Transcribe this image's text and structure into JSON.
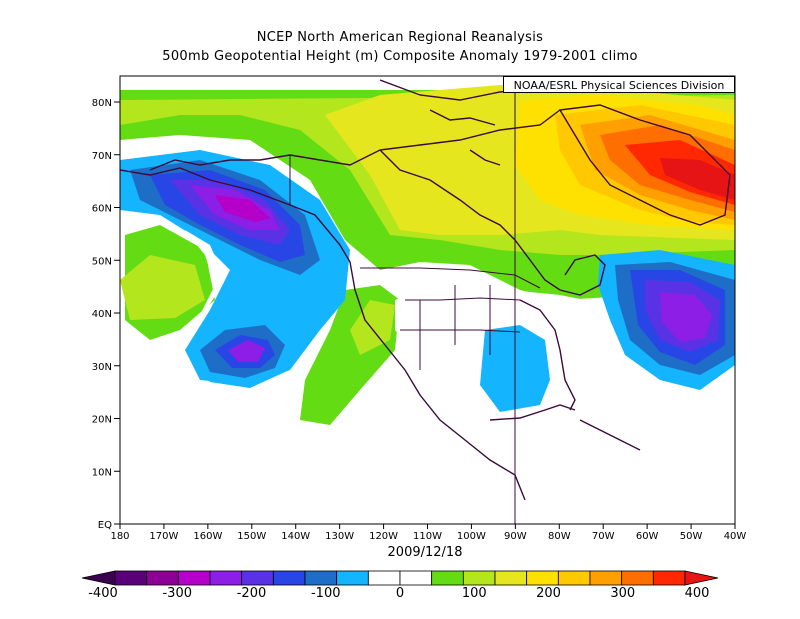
{
  "title_line1": "NCEP North American Regional Reanalysis",
  "title_line2": "500mb Geopotential Height (m) Composite Anomaly 1979-2001 climo",
  "credit": "NOAA/ESRL Physical Sciences Division",
  "date": "2009/12/18",
  "lat_labels": [
    "80N",
    "70N",
    "60N",
    "50N",
    "40N",
    "30N",
    "20N",
    "10N",
    "EQ"
  ],
  "lon_labels": [
    "180",
    "170W",
    "160W",
    "150W",
    "140W",
    "130W",
    "120W",
    "110W",
    "100W",
    "90W",
    "80W",
    "70W",
    "60W",
    "50W",
    "40W"
  ],
  "colorbar": {
    "labels": [
      "-400",
      "-300",
      "-200",
      "-100",
      "0",
      "100",
      "200",
      "300",
      "400"
    ],
    "colors": [
      "#5a0078",
      "#8c0096",
      "#b400c8",
      "#8c1ee6",
      "#5a32e6",
      "#2846e6",
      "#1e6ec8",
      "#14b4ff",
      "#ffffff",
      "#ffffff",
      "#64dc14",
      "#b4e61e",
      "#e6e61e",
      "#ffe100",
      "#ffc800",
      "#ffa000",
      "#ff6e00",
      "#ff2800"
    ],
    "left_end_color": "#3c0050",
    "right_end_color": "#e61414"
  },
  "icons": [
    "colorbar-left-arrow-icon",
    "colorbar-right-arrow-icon"
  ]
}
